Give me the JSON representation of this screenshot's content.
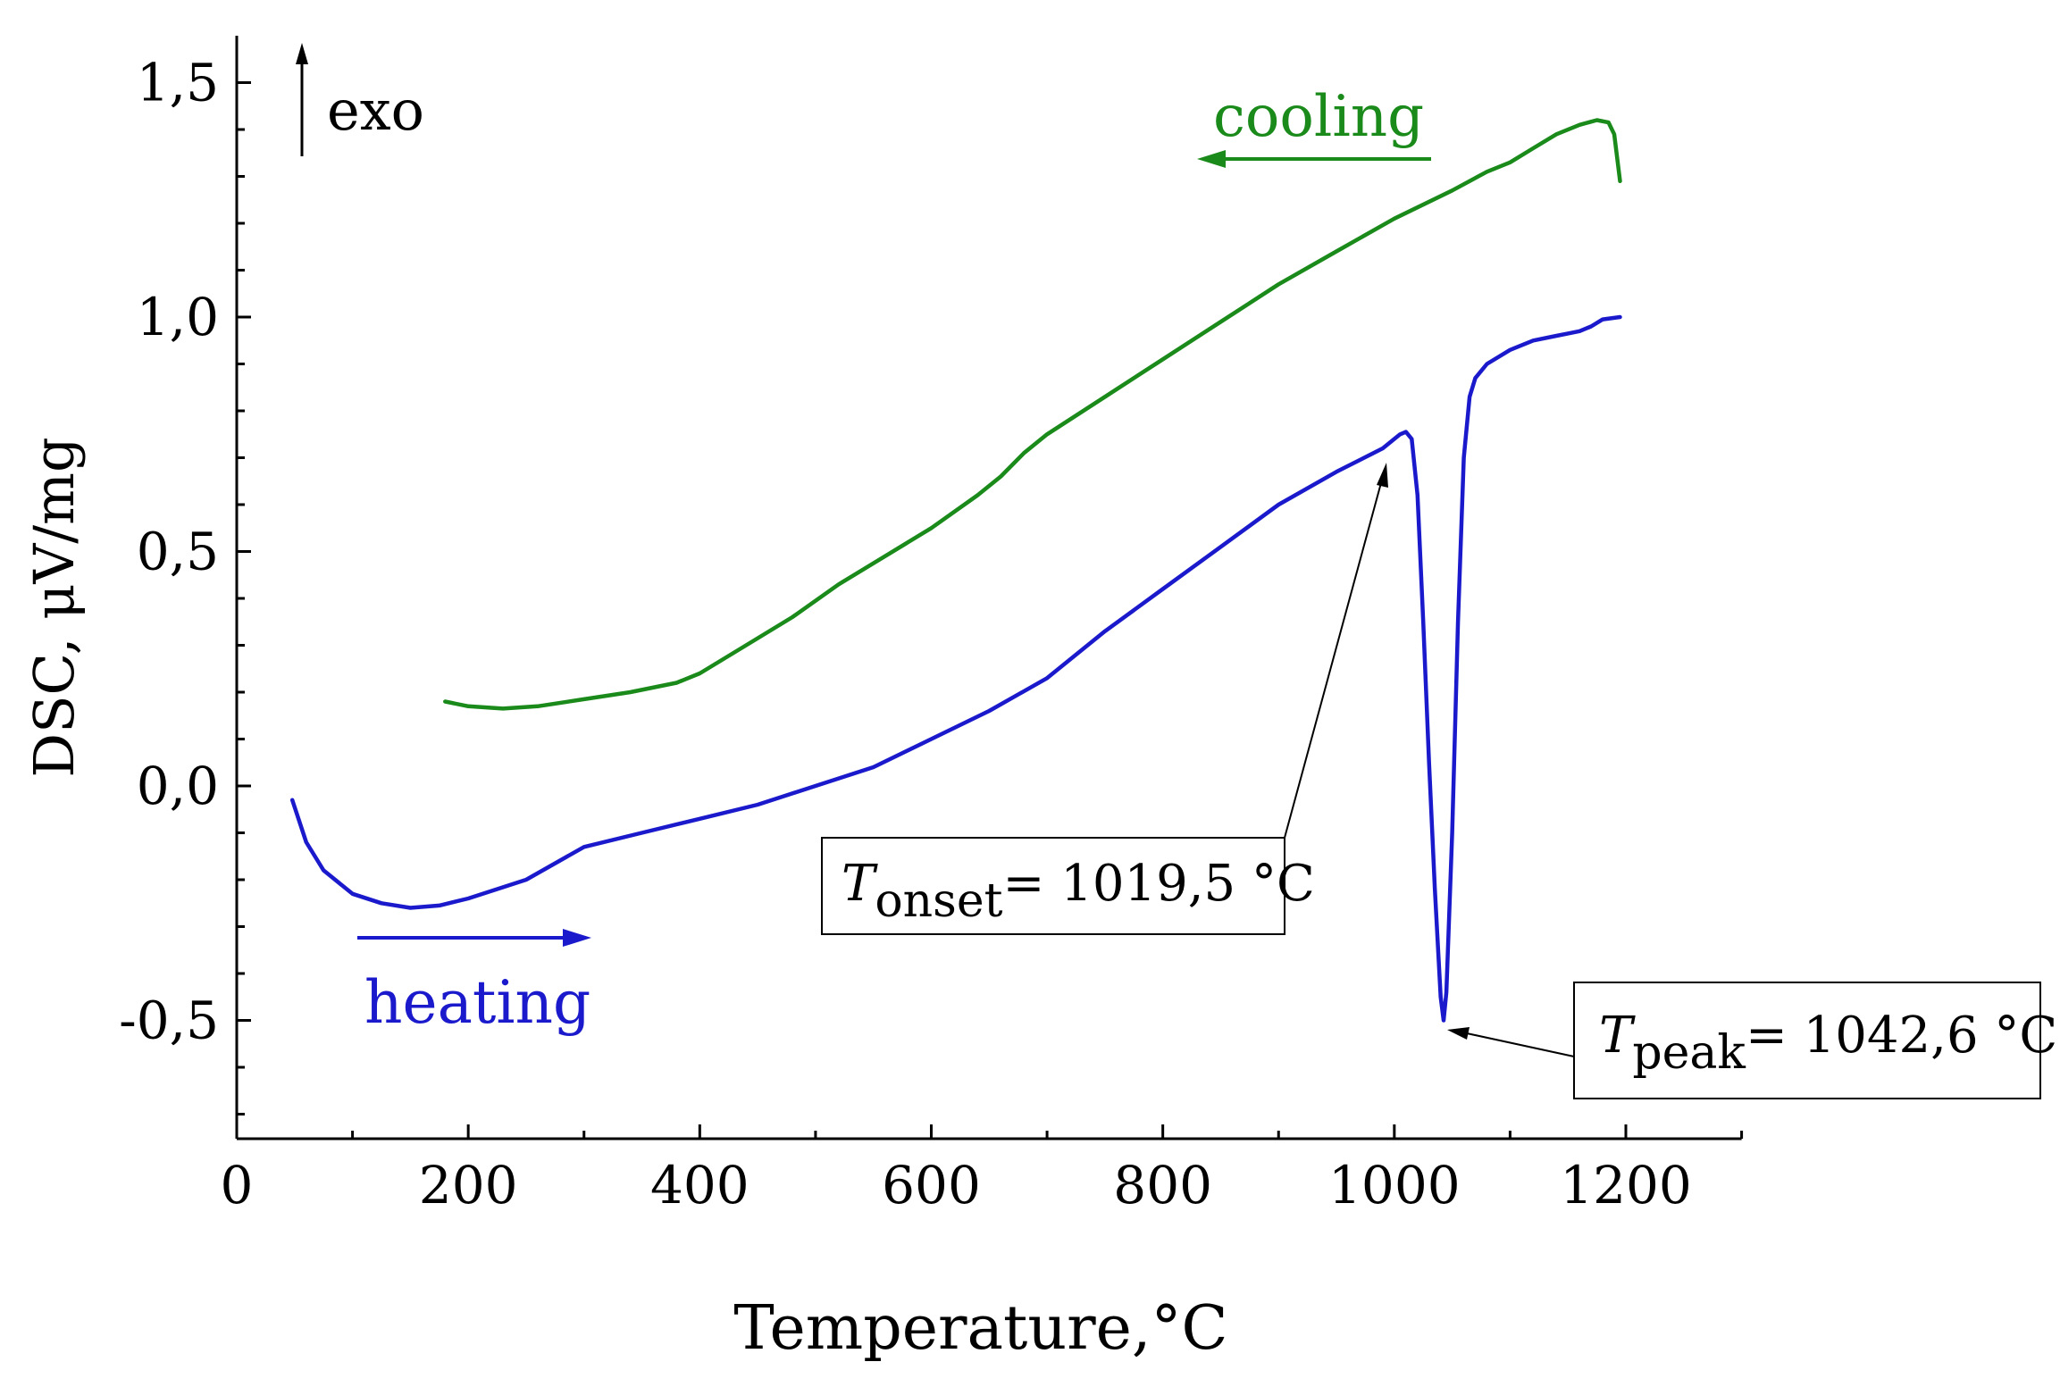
{
  "chart_data": {
    "type": "line",
    "title": "",
    "xlabel": "Temperature,°C",
    "ylabel": "DSC, μV/mg",
    "xlim": [
      0,
      1300
    ],
    "ylim": [
      -0.75,
      1.6
    ],
    "x_ticks": [
      0,
      200,
      400,
      600,
      800,
      1000,
      1200
    ],
    "x_tick_labels": [
      "0",
      "200",
      "400",
      "600",
      "800",
      "1000",
      "1200"
    ],
    "y_ticks": [
      -0.5,
      0.0,
      0.5,
      1.0,
      1.5
    ],
    "y_tick_labels": [
      "-0,5",
      "0,0",
      "0,5",
      "1,0",
      "1,5"
    ],
    "grid": false,
    "series": [
      {
        "name": "cooling",
        "color": "#1a8a1a",
        "x": [
          180,
          200,
          230,
          260,
          300,
          340,
          380,
          400,
          440,
          480,
          520,
          560,
          600,
          640,
          660,
          680,
          700,
          750,
          800,
          850,
          900,
          950,
          1000,
          1050,
          1080,
          1100,
          1120,
          1140,
          1160,
          1175,
          1185,
          1190,
          1195
        ],
        "y": [
          0.18,
          0.17,
          0.165,
          0.17,
          0.185,
          0.2,
          0.22,
          0.24,
          0.3,
          0.36,
          0.43,
          0.49,
          0.55,
          0.62,
          0.66,
          0.71,
          0.75,
          0.83,
          0.91,
          0.99,
          1.07,
          1.14,
          1.21,
          1.27,
          1.31,
          1.33,
          1.36,
          1.39,
          1.41,
          1.42,
          1.415,
          1.39,
          1.29
        ]
      },
      {
        "name": "heating",
        "color": "#1a1acc",
        "x": [
          48,
          60,
          75,
          100,
          125,
          150,
          175,
          200,
          250,
          300,
          350,
          400,
          450,
          500,
          550,
          600,
          650,
          700,
          750,
          800,
          850,
          900,
          950,
          990,
          1000,
          1005,
          1010,
          1015,
          1020,
          1025,
          1030,
          1035,
          1040,
          1042.6,
          1045,
          1050,
          1055,
          1060,
          1065,
          1070,
          1080,
          1100,
          1120,
          1140,
          1150,
          1160,
          1170,
          1180,
          1195
        ],
        "y": [
          -0.03,
          -0.12,
          -0.18,
          -0.23,
          -0.25,
          -0.26,
          -0.255,
          -0.24,
          -0.2,
          -0.13,
          -0.1,
          -0.07,
          -0.04,
          0.0,
          0.04,
          0.1,
          0.16,
          0.23,
          0.33,
          0.42,
          0.51,
          0.6,
          0.67,
          0.72,
          0.74,
          0.75,
          0.755,
          0.74,
          0.62,
          0.35,
          0.05,
          -0.22,
          -0.45,
          -0.5,
          -0.44,
          -0.1,
          0.35,
          0.7,
          0.83,
          0.87,
          0.9,
          0.93,
          0.95,
          0.96,
          0.965,
          0.97,
          0.98,
          0.995,
          1.0
        ]
      }
    ],
    "annotations": [
      {
        "id": "exo",
        "text": "exo"
      },
      {
        "id": "cooling",
        "text": "cooling"
      },
      {
        "id": "heating",
        "text": "heating"
      },
      {
        "id": "onset",
        "symbol": "T",
        "subscript": "onset",
        "text": "= 1019,5 °C",
        "point": [
          1000,
          0.73
        ]
      },
      {
        "id": "peak",
        "symbol": "T",
        "subscript": "peak",
        "text": "= 1042,6 °C",
        "point": [
          1045,
          -0.51
        ]
      }
    ]
  }
}
